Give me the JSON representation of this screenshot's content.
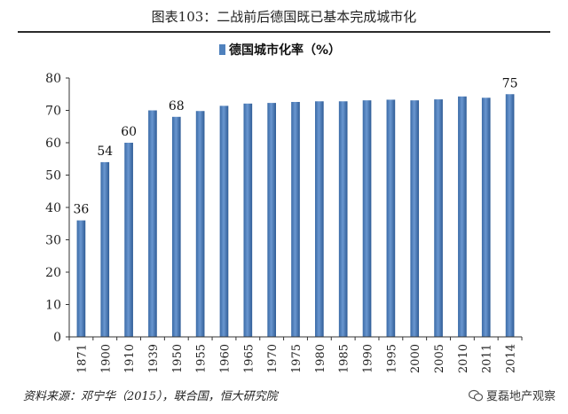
{
  "figure_title": "图表103：二战前后德国既已基本完成城市化",
  "source": "资料来源：邓宁华（2015），联合国，恒大研究院",
  "watermark": "夏磊地产观察",
  "chart_data": {
    "type": "bar",
    "legend_position": "top-center",
    "categories": [
      "1871",
      "1900",
      "1910",
      "1939",
      "1950",
      "1955",
      "1960",
      "1965",
      "1970",
      "1975",
      "1980",
      "1985",
      "1990",
      "1995",
      "2000",
      "2005",
      "2010",
      "2011",
      "2014"
    ],
    "series": [
      {
        "name": "德国城市化率（%）",
        "color": "#4f81bd",
        "values": [
          36,
          54,
          60,
          70,
          68,
          69.8,
          71.4,
          72.1,
          72.3,
          72.6,
          72.8,
          72.8,
          73.1,
          73.3,
          73.1,
          73.4,
          74.3,
          73.9,
          75
        ]
      }
    ],
    "data_labels": [
      {
        "category": "1871",
        "text": "36"
      },
      {
        "category": "1900",
        "text": "54"
      },
      {
        "category": "1910",
        "text": "60"
      },
      {
        "category": "1950",
        "text": "68"
      },
      {
        "category": "2014",
        "text": "75"
      }
    ],
    "ylim": [
      0,
      80
    ],
    "yticks": [
      0,
      10,
      20,
      30,
      40,
      50,
      60,
      70,
      80
    ],
    "grid": false
  }
}
